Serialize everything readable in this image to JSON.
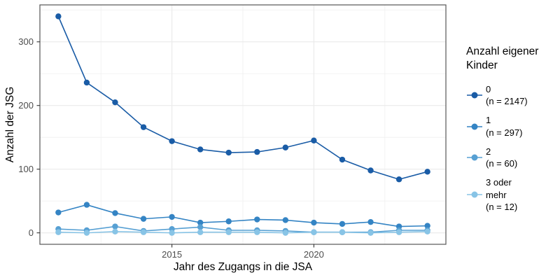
{
  "figure": {
    "xlabel": "Jahr des Zugangs in die JSA",
    "ylabel": "Anzahl der JSG"
  },
  "legend": {
    "title": "Anzahl eigener Kinder",
    "position": "right"
  },
  "colors": {
    "background": "#ffffff",
    "grid_major": "#ebebeb",
    "grid_minor": "#efefef",
    "panel_border": "#565656",
    "tick_mark": "#333333",
    "tick_label": "#4d4d4d",
    "axis_title": "#000000"
  },
  "chart_data": {
    "type": "line",
    "title": "",
    "xlabel": "Jahr des Zugangs in die JSA",
    "ylabel": "Anzahl der JSG",
    "legend_title": "Anzahl eigener Kinder",
    "legend_position": "right",
    "grid": true,
    "x": [
      2011,
      2012,
      2013,
      2014,
      2015,
      2016,
      2017,
      2018,
      2019,
      2020,
      2021,
      2022,
      2023,
      2024
    ],
    "xticks": [
      2015,
      2020
    ],
    "yticks": [
      0,
      100,
      200,
      300
    ],
    "x_minor": [
      2012.5,
      2017.5,
      2022.5
    ],
    "y_minor": [
      50,
      150,
      250,
      350
    ],
    "xlim": [
      2010.35,
      2024.65
    ],
    "ylim": [
      -18,
      358
    ],
    "series": [
      {
        "name": "0",
        "legend_label": "0 (n = 2147)",
        "label_lines": [
          "0",
          "(n = 2147)"
        ],
        "n": 2147,
        "color": "#1a5ca6",
        "values": [
          340,
          236,
          205,
          166,
          144,
          131,
          126,
          127,
          134,
          145,
          115,
          98,
          84,
          96
        ]
      },
      {
        "name": "1",
        "legend_label": "1 (n = 297)",
        "label_lines": [
          "1",
          "(n = 297)"
        ],
        "n": 297,
        "color": "#3484c4",
        "values": [
          32,
          44,
          31,
          22,
          25,
          16,
          18,
          21,
          20,
          16,
          14,
          17,
          10,
          11
        ]
      },
      {
        "name": "2",
        "legend_label": "2 (n = 60)",
        "label_lines": [
          "2",
          "(n = 60)"
        ],
        "n": 60,
        "color": "#57a0d3",
        "values": [
          6,
          4,
          10,
          3,
          6,
          9,
          4,
          4,
          3,
          1,
          1,
          1,
          4,
          4
        ]
      },
      {
        "name": "3 oder mehr",
        "legend_label": "3 oder mehr (n = 12)",
        "label_lines": [
          "3 oder",
          "mehr",
          "(n = 12)"
        ],
        "n": 12,
        "color": "#88c4e6",
        "values": [
          1,
          0,
          2,
          1,
          0,
          1,
          1,
          1,
          0,
          1,
          1,
          0,
          1,
          2
        ]
      }
    ]
  }
}
